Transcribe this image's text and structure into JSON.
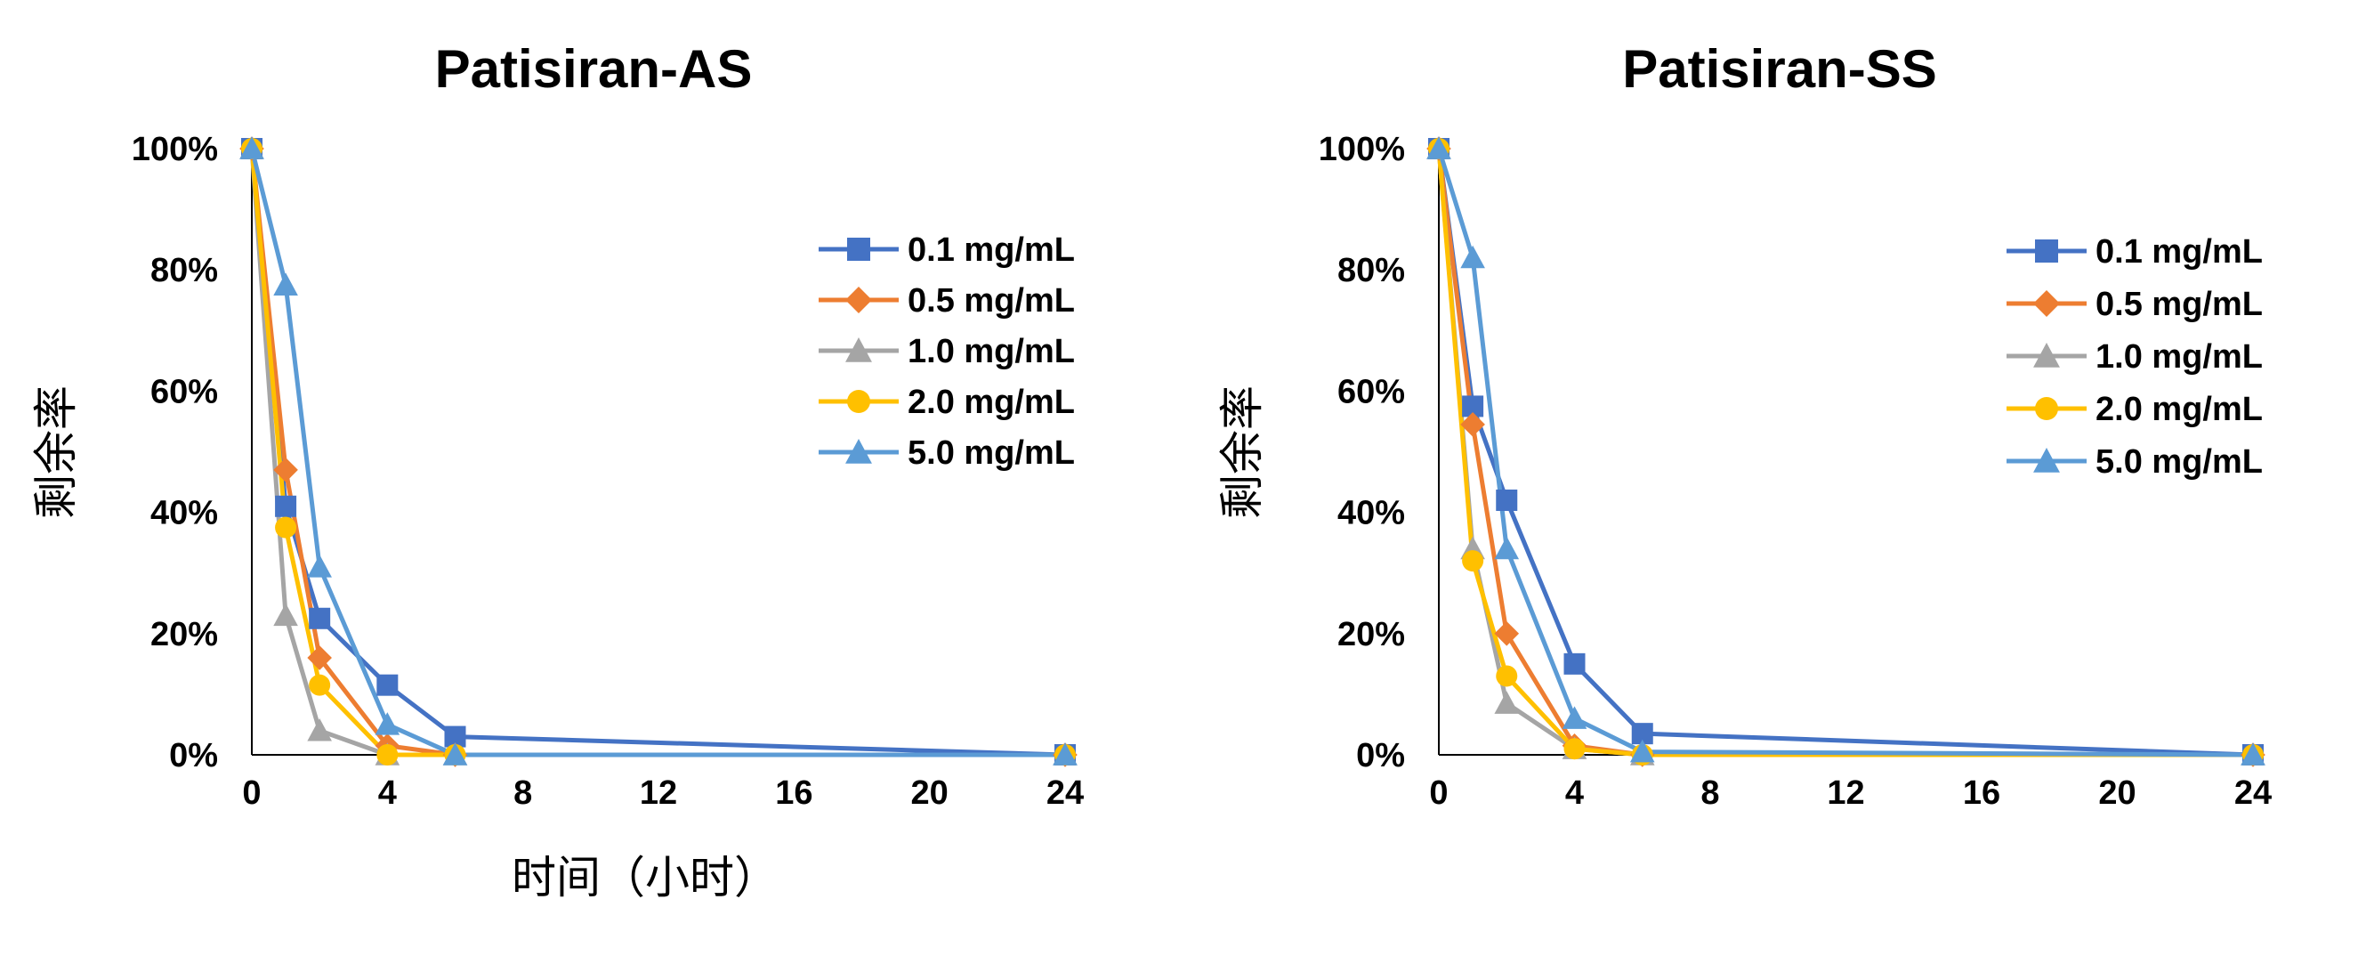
{
  "chart_data": [
    {
      "type": "line",
      "title": "Patisiran-AS",
      "xlabel": "时间（小时）",
      "ylabel": "剩余率",
      "xlim": [
        0,
        24
      ],
      "ylim": [
        0,
        100
      ],
      "xticks": [
        "0",
        "4",
        "8",
        "12",
        "16",
        "20",
        "24"
      ],
      "yticks": [
        "0%",
        "20%",
        "40%",
        "60%",
        "80%",
        "100%"
      ],
      "x": [
        0,
        1,
        2,
        4,
        6,
        24
      ],
      "legend_position": "top-right",
      "grid": false,
      "series": [
        {
          "name": "0.1 mg/mL",
          "color": "#4472C4",
          "marker": "square",
          "values": [
            100,
            41,
            22.5,
            11.5,
            3,
            0
          ]
        },
        {
          "name": "0.5 mg/mL",
          "color": "#ED7D31",
          "marker": "diamond",
          "values": [
            100,
            47,
            16,
            1.5,
            0,
            0
          ]
        },
        {
          "name": "1.0 mg/mL",
          "color": "#A5A5A5",
          "marker": "triangle",
          "values": [
            100,
            23,
            4,
            0,
            0,
            0
          ]
        },
        {
          "name": "2.0 mg/mL",
          "color": "#FFC000",
          "marker": "circle",
          "values": [
            100,
            37.5,
            11.5,
            0,
            0,
            0
          ]
        },
        {
          "name": "5.0 mg/mL",
          "color": "#5B9BD5",
          "marker": "triangle",
          "values": [
            100,
            77.5,
            31,
            5,
            0,
            0
          ]
        }
      ]
    },
    {
      "type": "line",
      "title": "Patisiran-SS",
      "xlabel": "",
      "ylabel": "剩余率",
      "xlim": [
        0,
        24
      ],
      "ylim": [
        0,
        100
      ],
      "xticks": [
        "0",
        "4",
        "8",
        "12",
        "16",
        "20",
        "24"
      ],
      "yticks": [
        "0%",
        "20%",
        "40%",
        "60%",
        "80%",
        "100%"
      ],
      "x": [
        0,
        1,
        2,
        4,
        6,
        24
      ],
      "legend_position": "top-right",
      "grid": false,
      "series": [
        {
          "name": "0.1 mg/mL",
          "color": "#4472C4",
          "marker": "square",
          "values": [
            100,
            57.5,
            42,
            15,
            3.5,
            0
          ]
        },
        {
          "name": "0.5 mg/mL",
          "color": "#ED7D31",
          "marker": "diamond",
          "values": [
            100,
            54.5,
            20,
            1.5,
            0,
            0
          ]
        },
        {
          "name": "1.0 mg/mL",
          "color": "#A5A5A5",
          "marker": "triangle",
          "values": [
            100,
            34,
            8.5,
            1,
            0,
            0
          ]
        },
        {
          "name": "2.0 mg/mL",
          "color": "#FFC000",
          "marker": "circle",
          "values": [
            100,
            32,
            13,
            1,
            0,
            0
          ]
        },
        {
          "name": "5.0 mg/mL",
          "color": "#5B9BD5",
          "marker": "triangle",
          "values": [
            100,
            82,
            34,
            6,
            0.5,
            0
          ]
        }
      ]
    }
  ]
}
